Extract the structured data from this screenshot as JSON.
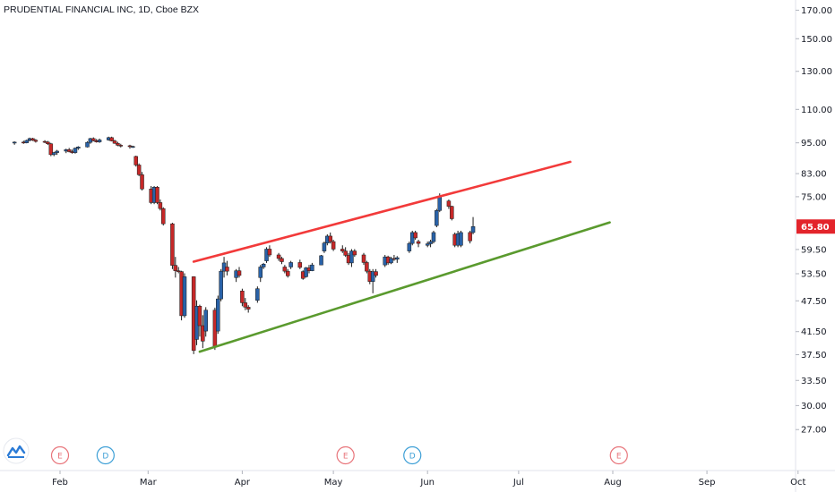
{
  "header": {
    "title": "PRUDENTIAL FINANCIAL INC, 1D, Cboe BZX"
  },
  "current_price_label": "65.80",
  "colors": {
    "up": "#2962a8",
    "down": "#c62828",
    "resistance": "#f23a3a",
    "support": "#5a9a2e",
    "price_label_bg": "#e3242b",
    "axis_text": "#131722",
    "earnings_badge": "#e8747a",
    "dividend_badge": "#3d9fd6"
  },
  "logo": {
    "icon": "tradingview-logo-icon"
  },
  "chart_data": {
    "type": "candlestick",
    "title": "PRUDENTIAL FINANCIAL INC, 1D, Cboe BZX",
    "y_scale": "log",
    "ylim": [
      24.5,
      175
    ],
    "y_ticks": [
      "27.00",
      "30.00",
      "33.50",
      "37.50",
      "41.50",
      "47.50",
      "53.50",
      "59.50",
      "65.80",
      "75.00",
      "83.00",
      "95.00",
      "110.00",
      "130.00",
      "150.00",
      "170.00"
    ],
    "x_ticks": [
      "Feb",
      "Mar",
      "Apr",
      "May",
      "Jun",
      "Jul",
      "Aug",
      "Sep",
      "Oct"
    ],
    "x_tick_dates": [
      "2020-02-01",
      "2020-03-01",
      "2020-04-01",
      "2020-05-01",
      "2020-06-01",
      "2020-07-01",
      "2020-08-01",
      "2020-09-01",
      "2020-10-01"
    ],
    "last_price": 65.8,
    "candles": [
      [
        "2020-01-17",
        94.9,
        95.6,
        94.2,
        95.3
      ],
      [
        "2020-01-20",
        95.3,
        95.9,
        94.6,
        95.0
      ],
      [
        "2020-01-21",
        95.0,
        96.3,
        94.8,
        96.0
      ],
      [
        "2020-01-22",
        96.0,
        97.2,
        95.6,
        96.8
      ],
      [
        "2020-01-23",
        96.8,
        97.1,
        95.8,
        96.1
      ],
      [
        "2020-01-24",
        96.1,
        96.6,
        95.1,
        95.6
      ],
      [
        "2020-01-27",
        95.6,
        96.1,
        94.9,
        95.3
      ],
      [
        "2020-01-28",
        95.3,
        95.8,
        94.1,
        94.6
      ],
      [
        "2020-01-29",
        94.6,
        95.0,
        89.6,
        90.2
      ],
      [
        "2020-01-30",
        90.2,
        91.3,
        89.6,
        91.0
      ],
      [
        "2020-01-31",
        91.0,
        92.1,
        90.1,
        91.6
      ],
      [
        "2020-02-03",
        91.6,
        92.6,
        90.8,
        92.2
      ],
      [
        "2020-02-04",
        92.2,
        92.9,
        91.1,
        91.4
      ],
      [
        "2020-02-05",
        91.4,
        92.2,
        90.6,
        91.0
      ],
      [
        "2020-02-06",
        91.0,
        93.1,
        90.6,
        92.8
      ],
      [
        "2020-02-07",
        92.8,
        93.6,
        92.1,
        93.3
      ],
      [
        "2020-02-10",
        93.3,
        95.6,
        93.1,
        95.2
      ],
      [
        "2020-02-11",
        95.2,
        97.1,
        94.6,
        96.8
      ],
      [
        "2020-02-12",
        96.8,
        97.3,
        95.6,
        95.9
      ],
      [
        "2020-02-13",
        95.9,
        96.6,
        95.1,
        95.4
      ],
      [
        "2020-02-14",
        95.4,
        96.8,
        95.0,
        96.2
      ],
      [
        "2020-02-17",
        96.2,
        97.6,
        95.9,
        97.2
      ],
      [
        "2020-02-18",
        97.2,
        97.6,
        95.6,
        95.8
      ],
      [
        "2020-02-19",
        95.8,
        96.3,
        94.6,
        94.8
      ],
      [
        "2020-02-20",
        94.8,
        95.4,
        93.6,
        94.0
      ],
      [
        "2020-02-21",
        94.0,
        94.6,
        93.1,
        93.8
      ],
      [
        "2020-02-24",
        93.8,
        94.2,
        92.6,
        93.4
      ],
      [
        "2020-02-25",
        93.4,
        93.8,
        92.9,
        93.5
      ],
      [
        "2020-02-26",
        89.5,
        89.8,
        85.6,
        86.2
      ],
      [
        "2020-02-27",
        86.2,
        86.8,
        82.1,
        82.6
      ],
      [
        "2020-02-28",
        82.6,
        83.6,
        77.1,
        77.6
      ],
      [
        "2020-03-02",
        77.6,
        78.6,
        72.6,
        73.1
      ],
      [
        "2020-03-03",
        73.1,
        78.6,
        72.6,
        78.2
      ],
      [
        "2020-03-04",
        78.2,
        78.6,
        72.6,
        73.1
      ],
      [
        "2020-03-05",
        73.1,
        74.1,
        70.6,
        71.2
      ],
      [
        "2020-03-06",
        71.2,
        71.6,
        66.1,
        66.6
      ],
      [
        "2020-03-09",
        66.6,
        66.9,
        54.6,
        55.5
      ],
      [
        "2020-03-10",
        55.5,
        57.6,
        52.6,
        54.2
      ],
      [
        "2020-03-11",
        54.2,
        55.1,
        53.6,
        54.0
      ],
      [
        "2020-03-12",
        54.0,
        54.2,
        43.6,
        44.5
      ],
      [
        "2020-03-13",
        44.5,
        53.6,
        44.1,
        52.8
      ],
      [
        "2020-03-16",
        52.8,
        52.9,
        37.6,
        38.2
      ],
      [
        "2020-03-17",
        40.1,
        47.6,
        39.1,
        46.4
      ],
      [
        "2020-03-18",
        46.4,
        46.7,
        40.6,
        42.6
      ],
      [
        "2020-03-19",
        42.6,
        44.6,
        38.6,
        39.8
      ],
      [
        "2020-03-20",
        41.6,
        46.2,
        40.6,
        45.6
      ],
      [
        "2020-03-23",
        45.6,
        46.1,
        38.3,
        38.9
      ],
      [
        "2020-03-24",
        41.6,
        48.6,
        41.1,
        47.9
      ],
      [
        "2020-03-25",
        47.9,
        54.6,
        47.4,
        54.1
      ],
      [
        "2020-03-26",
        54.1,
        57.6,
        52.6,
        56.1
      ],
      [
        "2020-03-27",
        55.1,
        56.6,
        53.1,
        54.1
      ],
      [
        "2020-03-30",
        52.6,
        54.6,
        51.6,
        54.2
      ],
      [
        "2020-03-31",
        54.2,
        55.1,
        52.6,
        53.1
      ],
      [
        "2020-04-01",
        49.6,
        50.1,
        46.4,
        47.1
      ],
      [
        "2020-04-02",
        47.1,
        48.1,
        45.6,
        46.2
      ],
      [
        "2020-04-03",
        46.2,
        46.6,
        45.1,
        45.8
      ],
      [
        "2020-04-06",
        47.6,
        50.6,
        47.1,
        50.1
      ],
      [
        "2020-04-07",
        52.6,
        55.6,
        51.6,
        55.1
      ],
      [
        "2020-04-08",
        55.1,
        56.1,
        54.6,
        55.8
      ],
      [
        "2020-04-09",
        56.6,
        60.1,
        56.1,
        59.6
      ],
      [
        "2020-04-10",
        59.6,
        60.6,
        57.6,
        58.1
      ],
      [
        "2020-04-13",
        58.1,
        58.6,
        56.6,
        57.2
      ],
      [
        "2020-04-14",
        57.2,
        57.6,
        55.8,
        56.4
      ],
      [
        "2020-04-15",
        55.1,
        55.6,
        53.6,
        54.1
      ],
      [
        "2020-04-16",
        54.1,
        54.6,
        52.6,
        53.0
      ],
      [
        "2020-04-17",
        55.1,
        56.6,
        54.6,
        56.2
      ],
      [
        "2020-04-20",
        56.2,
        56.9,
        54.6,
        55.0
      ],
      [
        "2020-04-21",
        54.0,
        54.3,
        52.1,
        52.4
      ],
      [
        "2020-04-22",
        52.8,
        55.1,
        52.6,
        54.9
      ],
      [
        "2020-04-23",
        54.9,
        55.6,
        53.6,
        54.2
      ],
      [
        "2020-04-24",
        54.2,
        56.1,
        54.1,
        55.6
      ],
      [
        "2020-04-27",
        55.6,
        58.1,
        55.6,
        57.9
      ],
      [
        "2020-04-28",
        59.1,
        61.6,
        58.6,
        61.2
      ],
      [
        "2020-04-29",
        61.2,
        63.6,
        60.6,
        63.1
      ],
      [
        "2020-04-30",
        63.1,
        64.1,
        61.1,
        61.6
      ],
      [
        "2020-05-01",
        61.6,
        62.1,
        59.1,
        59.6
      ],
      [
        "2020-05-04",
        59.6,
        60.6,
        58.6,
        59.1
      ],
      [
        "2020-05-05",
        59.1,
        60.1,
        57.6,
        58.0
      ],
      [
        "2020-05-06",
        58.0,
        58.6,
        55.6,
        56.1
      ],
      [
        "2020-05-07",
        56.1,
        59.6,
        55.1,
        59.1
      ],
      [
        "2020-05-08",
        59.1,
        59.6,
        57.6,
        58.1
      ],
      [
        "2020-05-11",
        58.1,
        58.6,
        55.6,
        56.2
      ],
      [
        "2020-05-12",
        56.2,
        56.6,
        53.6,
        54.1
      ],
      [
        "2020-05-13",
        54.1,
        54.6,
        51.1,
        51.7
      ],
      [
        "2020-05-14",
        51.7,
        54.6,
        49.1,
        54.0
      ],
      [
        "2020-05-15",
        54.0,
        54.6,
        52.6,
        53.1
      ],
      [
        "2020-05-18",
        55.6,
        58.1,
        55.1,
        57.6
      ],
      [
        "2020-05-19",
        57.6,
        57.9,
        55.6,
        56.1
      ],
      [
        "2020-05-20",
        56.1,
        57.6,
        55.8,
        57.2
      ],
      [
        "2020-05-21",
        57.2,
        58.1,
        56.6,
        57.0
      ],
      [
        "2020-05-22",
        57.0,
        57.8,
        56.1,
        57.4
      ],
      [
        "2020-05-26",
        59.1,
        61.6,
        58.6,
        61.1
      ],
      [
        "2020-05-27",
        61.1,
        64.6,
        60.6,
        64.1
      ],
      [
        "2020-05-28",
        64.1,
        64.6,
        62.1,
        62.6
      ],
      [
        "2020-05-29",
        61.6,
        62.1,
        60.1,
        61.1
      ],
      [
        "2020-06-01",
        60.6,
        61.6,
        60.1,
        61.0
      ],
      [
        "2020-06-02",
        61.0,
        62.1,
        60.1,
        61.6
      ],
      [
        "2020-06-03",
        61.6,
        64.6,
        61.1,
        64.1
      ],
      [
        "2020-06-04",
        66.1,
        71.1,
        65.6,
        70.6
      ],
      [
        "2020-06-05",
        70.6,
        76.1,
        70.1,
        75.1
      ],
      [
        "2020-06-08",
        73.6,
        74.1,
        71.1,
        71.9
      ],
      [
        "2020-06-09",
        71.9,
        72.1,
        67.6,
        68.1
      ],
      [
        "2020-06-10",
        63.6,
        64.1,
        60.1,
        60.6
      ],
      [
        "2020-06-11",
        60.6,
        64.6,
        60.1,
        63.8
      ],
      [
        "2020-06-12",
        60.6,
        64.6,
        60.1,
        64.1
      ],
      [
        "2020-06-15",
        64.1,
        64.6,
        61.1,
        61.8
      ],
      [
        "2020-06-16",
        64.1,
        68.6,
        63.6,
        65.8
      ]
    ],
    "trendlines": [
      {
        "role": "resistance",
        "from": [
          "2020-03-16",
          56.4
        ],
        "to": [
          "2020-07-18",
          87.4
        ]
      },
      {
        "role": "support",
        "from": [
          "2020-03-18",
          38.0
        ],
        "to": [
          "2020-07-31",
          67.0
        ]
      }
    ],
    "events": [
      {
        "label": "E",
        "kind": "earnings",
        "date": "2020-02-01"
      },
      {
        "label": "D",
        "kind": "dividend",
        "date": "2020-02-16"
      },
      {
        "label": "E",
        "kind": "earnings",
        "date": "2020-05-05"
      },
      {
        "label": "D",
        "kind": "dividend",
        "date": "2020-05-27"
      },
      {
        "label": "E",
        "kind": "earnings",
        "date": "2020-08-03"
      }
    ]
  }
}
